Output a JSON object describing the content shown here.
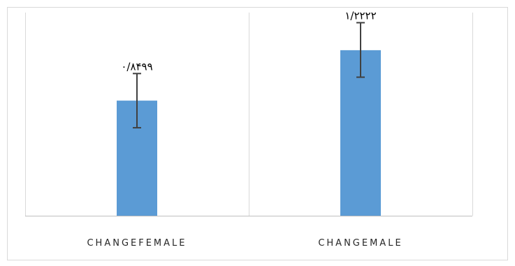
{
  "chart_data": {
    "type": "bar",
    "categories": [
      "CHANGEFEMALE",
      "CHANGEMALE"
    ],
    "values": [
      0.8499,
      1.2222
    ],
    "value_labels": [
      "۰/۸۴۹۹",
      "۱/۲۲۲۲"
    ],
    "error_bars": [
      {
        "low": 0.6498,
        "high": 1.0498
      },
      {
        "low": 1.0229,
        "high": 1.4252
      }
    ],
    "ylim": [
      0,
      1.5
    ],
    "grid": "vertical",
    "legend": "none",
    "colors": {
      "bar": "#5b9bd5",
      "error_bar": "#404040",
      "grid": "#d9d9d9",
      "axis": "#bfbfbf",
      "frame": "#d9d9d9",
      "label_text": "#000000",
      "category_text": "#262626"
    }
  }
}
